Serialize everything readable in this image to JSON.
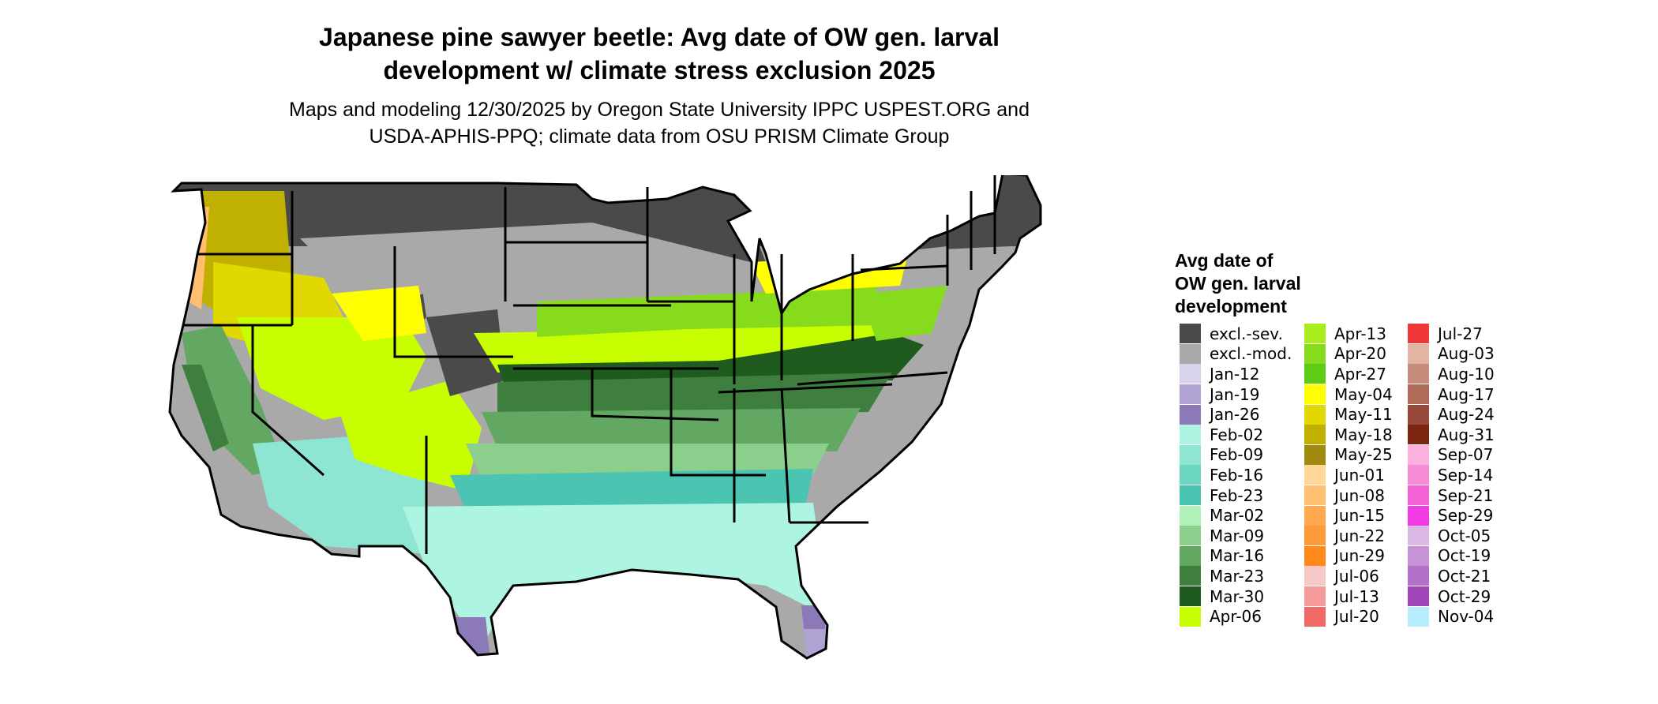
{
  "title_line1": "Japanese pine sawyer beetle: Avg date of OW gen. larval",
  "title_line2": "development w/ climate stress exclusion 2025",
  "subtitle_line1": "Maps and modeling 12/30/2025 by Oregon State University IPPC USPEST.ORG and",
  "subtitle_line2": "USDA-APHIS-PPQ; climate data from OSU PRISM Climate Group",
  "legend": {
    "title_line1": "Avg date of",
    "title_line2": "OW gen. larval",
    "title_line3": "development",
    "columns": [
      [
        {
          "label": "excl.-sev.",
          "color": "#4a4a4a"
        },
        {
          "label": "excl.-mod.",
          "color": "#a9a9a9"
        },
        {
          "label": "Jan-12",
          "color": "#d9d2eb"
        },
        {
          "label": "Jan-19",
          "color": "#b0a3d4"
        },
        {
          "label": "Jan-26",
          "color": "#8c79b8"
        },
        {
          "label": "Feb-02",
          "color": "#aef4e2"
        },
        {
          "label": "Feb-09",
          "color": "#8ee6d2"
        },
        {
          "label": "Feb-16",
          "color": "#6dd6c2"
        },
        {
          "label": "Feb-23",
          "color": "#4cc4b2"
        },
        {
          "label": "Mar-02",
          "color": "#b2f2b8"
        },
        {
          "label": "Mar-09",
          "color": "#8ccf8c"
        },
        {
          "label": "Mar-16",
          "color": "#62a862"
        },
        {
          "label": "Mar-23",
          "color": "#3e7e3e"
        },
        {
          "label": "Mar-30",
          "color": "#1f5a1f"
        },
        {
          "label": "Apr-06",
          "color": "#c8ff00"
        }
      ],
      [
        {
          "label": "Apr-13",
          "color": "#a8ec1c"
        },
        {
          "label": "Apr-20",
          "color": "#86dc1c"
        },
        {
          "label": "Apr-27",
          "color": "#5ccc14"
        },
        {
          "label": "May-04",
          "color": "#ffff00"
        },
        {
          "label": "May-11",
          "color": "#e0d800"
        },
        {
          "label": "May-18",
          "color": "#c0b000"
        },
        {
          "label": "May-25",
          "color": "#a08a10"
        },
        {
          "label": "Jun-01",
          "color": "#ffd899"
        },
        {
          "label": "Jun-08",
          "color": "#ffbe70"
        },
        {
          "label": "Jun-15",
          "color": "#ffaa50"
        },
        {
          "label": "Jun-22",
          "color": "#ff9a38"
        },
        {
          "label": "Jun-29",
          "color": "#ff8a1a"
        },
        {
          "label": "Jul-06",
          "color": "#f6c8c8"
        },
        {
          "label": "Jul-13",
          "color": "#f49a9a"
        },
        {
          "label": "Jul-20",
          "color": "#f06868"
        }
      ],
      [
        {
          "label": "Jul-27",
          "color": "#f03838"
        },
        {
          "label": "Aug-03",
          "color": "#e2b4a2"
        },
        {
          "label": "Aug-10",
          "color": "#c88c7c"
        },
        {
          "label": "Aug-17",
          "color": "#b06a58"
        },
        {
          "label": "Aug-24",
          "color": "#984838"
        },
        {
          "label": "Aug-31",
          "color": "#7c2410"
        },
        {
          "label": "Sep-07",
          "color": "#fab2dc"
        },
        {
          "label": "Sep-14",
          "color": "#f78ad6"
        },
        {
          "label": "Sep-21",
          "color": "#f462d8"
        },
        {
          "label": "Sep-29",
          "color": "#f03ae4"
        },
        {
          "label": "Oct-05",
          "color": "#dcb8e4"
        },
        {
          "label": "Oct-19",
          "color": "#c892d6"
        },
        {
          "label": "Oct-21",
          "color": "#b470c8"
        },
        {
          "label": "Oct-29",
          "color": "#a046ba"
        },
        {
          "label": "Nov-04",
          "color": "#b6eefe"
        }
      ]
    ]
  }
}
